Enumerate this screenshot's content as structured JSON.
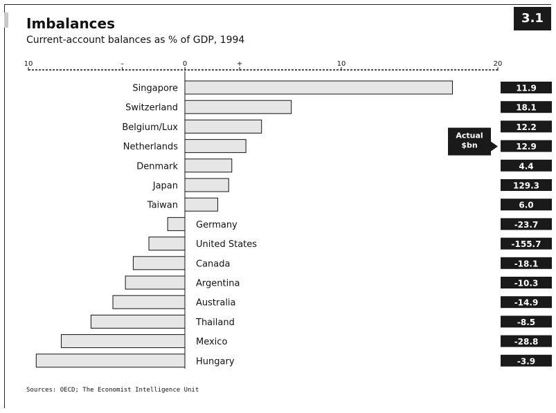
{
  "header": {
    "title": "Imbalances",
    "subtitle": "Current-account balances as % of GDP, 1994",
    "badge": "3.1"
  },
  "footer": {
    "source": "Sources: OECD; The Economist Intelligence Unit"
  },
  "callout": {
    "line1": "Actual",
    "line2": "$bn"
  },
  "chart_data": {
    "type": "bar",
    "orientation": "horizontal",
    "title": "Imbalances",
    "subtitle": "Current-account balances as % of GDP, 1994",
    "xlim": [
      -10,
      20
    ],
    "axis_position": "top",
    "ticks": [
      {
        "value": -10,
        "label": "10"
      },
      {
        "value": -4,
        "label": "–"
      },
      {
        "value": 0,
        "label": "0"
      },
      {
        "value": 3.5,
        "label": "+"
      },
      {
        "value": 10,
        "label": "10"
      },
      {
        "value": 20,
        "label": "20"
      }
    ],
    "categories": [
      "Singapore",
      "Switzerland",
      "Belgium/Lux",
      "Netherlands",
      "Denmark",
      "Japan",
      "Taiwan",
      "Germany",
      "United States",
      "Canada",
      "Argentina",
      "Australia",
      "Thailand",
      "Mexico",
      "Hungary"
    ],
    "values": [
      17.1,
      6.8,
      4.9,
      3.9,
      3.0,
      2.8,
      2.1,
      -1.1,
      -2.3,
      -3.3,
      -3.8,
      -4.6,
      -6.0,
      -7.9,
      -9.5
    ],
    "actual_bn_labels": [
      "11.9",
      "18.1",
      "12.2",
      "12.9",
      "4.4",
      "129.3",
      "6.0",
      "-23.7",
      "-155.7",
      "-18.1",
      "-10.3",
      "-14.9",
      "-8.5",
      "-28.8",
      "-3.9"
    ],
    "colors": {
      "bar_fill": "#e6e6e6",
      "bar_stroke": "#111111",
      "value_box": "#1a1a1a"
    }
  }
}
